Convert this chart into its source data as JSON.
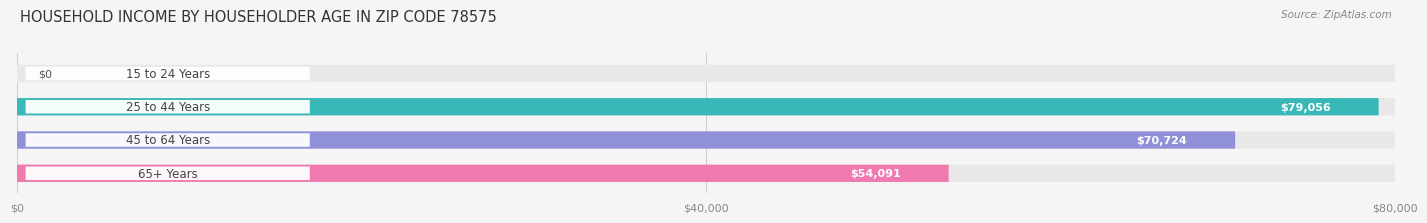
{
  "title": "HOUSEHOLD INCOME BY HOUSEHOLDER AGE IN ZIP CODE 78575",
  "source": "Source: ZipAtlas.com",
  "categories": [
    "15 to 24 Years",
    "25 to 44 Years",
    "45 to 64 Years",
    "65+ Years"
  ],
  "values": [
    0,
    79056,
    70724,
    54091
  ],
  "max_value": 80000,
  "bar_colors": [
    "#c9a8d4",
    "#39b8b8",
    "#9090d8",
    "#f07ab0"
  ],
  "value_labels": [
    "$0",
    "$79,056",
    "$70,724",
    "$54,091"
  ],
  "x_ticks": [
    0,
    40000,
    80000
  ],
  "x_tick_labels": [
    "$0",
    "$40,000",
    "$80,000"
  ],
  "background_color": "#f5f5f5",
  "bar_background_color": "#e8e8e8",
  "title_fontsize": 10.5,
  "source_fontsize": 7.5,
  "label_fontsize": 8.5,
  "value_fontsize": 8,
  "tick_fontsize": 8
}
